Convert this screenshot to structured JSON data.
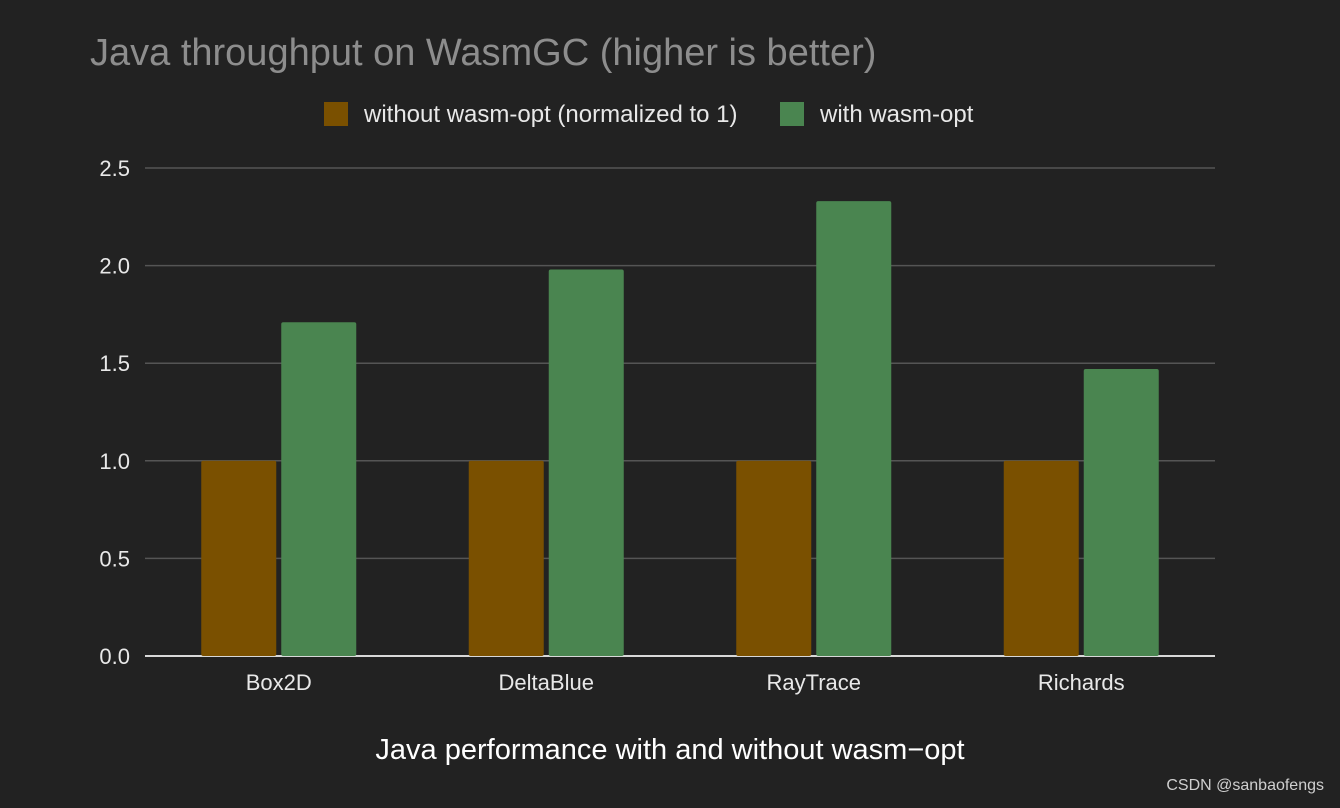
{
  "chart_data": {
    "type": "bar",
    "title": "Java throughput on WasmGC (higher is better)",
    "categories": [
      "Box2D",
      "DeltaBlue",
      "RayTrace",
      "Richards"
    ],
    "series": [
      {
        "name": "without wasm-opt (normalized to 1)",
        "color": "#7a5000",
        "values": [
          1.0,
          1.0,
          1.0,
          1.0
        ]
      },
      {
        "name": "with wasm-opt",
        "color": "#4a8550",
        "values": [
          1.71,
          1.98,
          2.33,
          1.47
        ]
      }
    ],
    "ylim": [
      0,
      2.5
    ],
    "yticks": [
      "0.0",
      "0.5",
      "1.0",
      "1.5",
      "2.0",
      "2.5"
    ],
    "ytick_values": [
      0,
      0.5,
      1.0,
      1.5,
      2.0,
      2.5
    ],
    "grid": true,
    "legend_position": "top-center"
  },
  "caption": "Java performance with and without wasm−opt",
  "watermark": "CSDN @sanbaofengs"
}
